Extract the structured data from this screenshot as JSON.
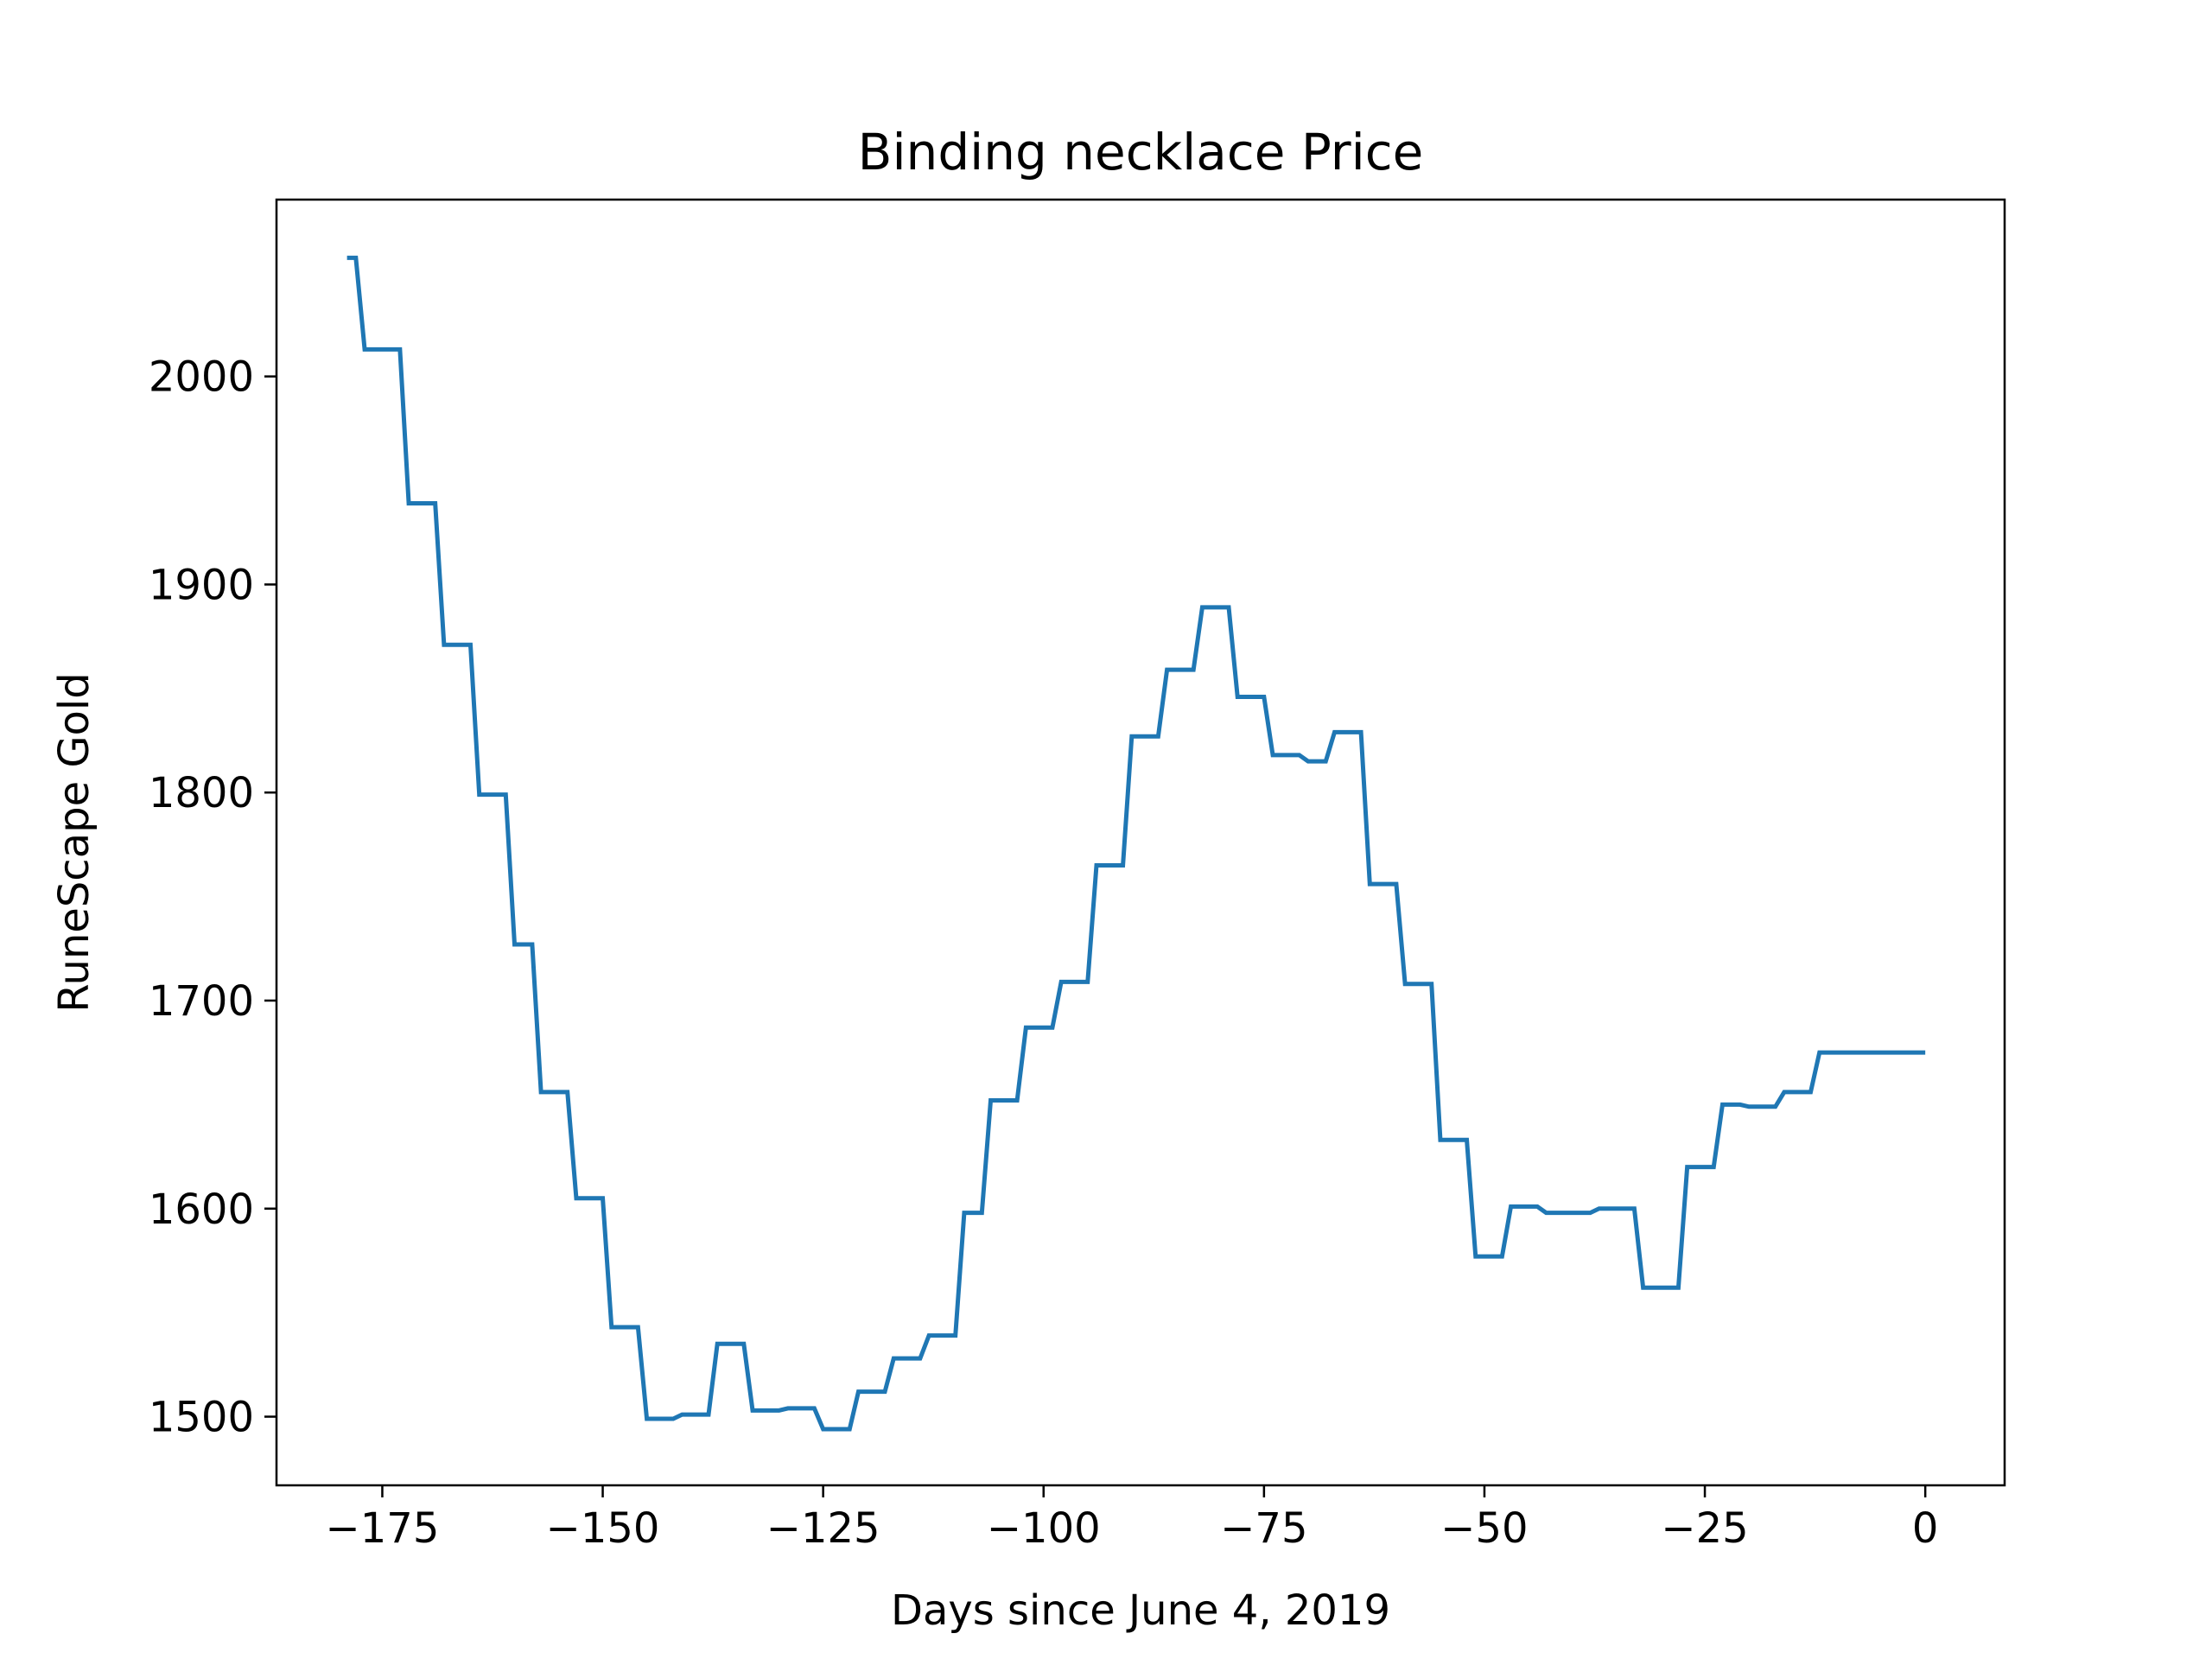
{
  "chart_data": {
    "type": "line",
    "title": "Binding necklace Price",
    "xlabel": "Days since June 4, 2019",
    "ylabel": "RuneScape Gold",
    "xlim": [
      -187,
      9
    ],
    "ylim": [
      1467,
      2085
    ],
    "xticks": [
      -175,
      -150,
      -125,
      -100,
      -75,
      -50,
      -25,
      0
    ],
    "xtick_labels": [
      "−175",
      "−150",
      "−125",
      "−100",
      "−75",
      "−50",
      "−25",
      "0"
    ],
    "yticks": [
      1500,
      1600,
      1700,
      1800,
      1900,
      2000
    ],
    "ytick_labels": [
      "1500",
      "1600",
      "1700",
      "1800",
      "1900",
      "2000"
    ],
    "grid": false,
    "legend": false,
    "line_color": "#1f77b4",
    "series": [
      {
        "x": [
          -179,
          -178,
          -177,
          -173,
          -172,
          -169,
          -168,
          -165,
          -164,
          -161,
          -160,
          -158,
          -157,
          -154,
          -153,
          -150,
          -149,
          -146,
          -145,
          -142,
          -141,
          -138,
          -137,
          -134,
          -133,
          -130,
          -129,
          -126,
          -125,
          -122,
          -121,
          -118,
          -117,
          -114,
          -113,
          -110,
          -109,
          -107,
          -106,
          -103,
          -102,
          -99,
          -98,
          -95,
          -94,
          -91,
          -90,
          -87,
          -86,
          -83,
          -82,
          -79,
          -78,
          -75,
          -74,
          -71,
          -70,
          -68,
          -67,
          -64,
          -63,
          -60,
          -59,
          -56,
          -55,
          -52,
          -51,
          -48,
          -47,
          -44,
          -43,
          -38,
          -37,
          -33,
          -32,
          -28,
          -27,
          -24,
          -23,
          -21,
          -20,
          -17,
          -16,
          -13,
          -12,
          -9,
          -8,
          -5,
          -4,
          -1,
          0
        ],
        "y": [
          2057,
          2057,
          2013,
          2013,
          1939,
          1939,
          1871,
          1871,
          1799,
          1799,
          1727,
          1727,
          1656,
          1656,
          1605,
          1605,
          1543,
          1543,
          1499,
          1499,
          1501,
          1501,
          1535,
          1535,
          1503,
          1503,
          1504,
          1504,
          1494,
          1494,
          1512,
          1512,
          1528,
          1528,
          1539,
          1539,
          1598,
          1598,
          1652,
          1652,
          1687,
          1687,
          1709,
          1709,
          1765,
          1765,
          1827,
          1827,
          1859,
          1859,
          1889,
          1889,
          1846,
          1846,
          1818,
          1818,
          1815,
          1815,
          1829,
          1829,
          1756,
          1756,
          1708,
          1708,
          1633,
          1633,
          1577,
          1577,
          1601,
          1601,
          1598,
          1598,
          1600,
          1600,
          1562,
          1562,
          1620,
          1620,
          1650,
          1650,
          1649,
          1649,
          1656,
          1656,
          1675,
          1675,
          1675,
          1675,
          1675,
          1675,
          1675
        ]
      }
    ]
  }
}
